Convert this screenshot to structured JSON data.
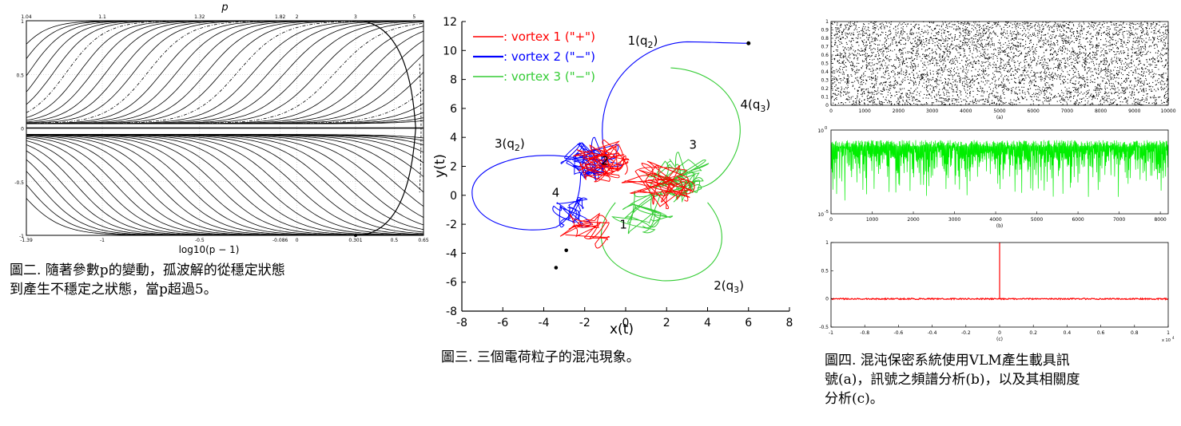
{
  "figures": [
    {
      "caption_lines": [
        "圖二. 隨著參數p的變動，孤波解的從穩定狀態",
        "到產生不穩定之狀態，當p超過5。"
      ]
    },
    {
      "caption_lines": [
        "圖三.  三個電荷粒子的混沌現象。"
      ]
    },
    {
      "caption_lines": [
        "圖四. 混沌保密系統使用VLM產生載具訊",
        "號(a)，訊號之頻譜分析(b)，以及其相關度",
        "分析(c)。"
      ]
    }
  ],
  "chart_data": [
    {
      "type": "line",
      "title": "",
      "top_axis_label": "p",
      "xlabel": "log10(p − 1)",
      "top_ticks": [
        "1.04",
        "1.1",
        "1.32",
        "1.82",
        "2",
        "3",
        "5"
      ],
      "top_tick_log": [
        -1.39,
        -1.0,
        -0.5,
        -0.086,
        0.0,
        0.301,
        0.602
      ],
      "bottom_ticks": [
        "-1.39",
        "-1",
        "-0.5",
        "-0.086",
        "0",
        "0.301",
        "0.5",
        "0.65"
      ],
      "bottom_tick_values": [
        -1.39,
        -1.0,
        -0.5,
        -0.086,
        0.0,
        0.301,
        0.5,
        0.65
      ],
      "y_ticks": [
        "1",
        "0.5",
        "0",
        "-0.5",
        "-1"
      ],
      "y_tick_values": [
        1,
        0.5,
        0,
        -0.5,
        -1
      ],
      "xlim": [
        -1.39,
        0.65
      ],
      "ylim": [
        -1,
        1
      ],
      "grid": true,
      "colors": {
        "curves": "#000000",
        "grid": "#bbbbbb"
      }
    },
    {
      "type": "line",
      "title": "",
      "xlabel": "x(t)",
      "ylabel": "y(t)",
      "xlim": [
        -8,
        8
      ],
      "ylim": [
        -8,
        12
      ],
      "x_ticks": [
        "-8",
        "-6",
        "-4",
        "-2",
        "0",
        "2",
        "4",
        "6",
        "8"
      ],
      "x_tick_values": [
        -8,
        -6,
        -4,
        -2,
        0,
        2,
        4,
        6,
        8
      ],
      "y_ticks": [
        "12",
        "10",
        "8",
        "6",
        "4",
        "2",
        "0",
        "-2",
        "-4",
        "-6",
        "-8"
      ],
      "y_tick_values": [
        12,
        10,
        8,
        6,
        4,
        2,
        0,
        -2,
        -4,
        -6,
        -8
      ],
      "legend_position": "top-left",
      "series": [
        {
          "name": ": vortex 1 (\"+\")",
          "color": "#ff0000"
        },
        {
          "name": ": vortex 2 (\"−\")",
          "color": "#0000ff"
        },
        {
          "name": ": vortex 3 (\"−\")",
          "color": "#33cc33"
        }
      ],
      "annotations": [
        {
          "text": "1(q",
          "sub": "2",
          "tail": ")",
          "x": 0.1,
          "y": 10.4
        },
        {
          "text": "4(q",
          "sub": "3",
          "tail": ")",
          "x": 5.6,
          "y": 6.0
        },
        {
          "text": "3(q",
          "sub": "2",
          "tail": ")",
          "x": -6.4,
          "y": 3.3
        },
        {
          "text": "2(q",
          "sub": "3",
          "tail": ")",
          "x": 4.3,
          "y": -6.5
        },
        {
          "text": "3",
          "x": 3.1,
          "y": 3.2
        },
        {
          "text": "2",
          "x": -1.2,
          "y": 2.1
        },
        {
          "text": "4",
          "x": -3.6,
          "y": -0.1
        },
        {
          "text": "1",
          "x": -0.3,
          "y": -2.3
        }
      ]
    },
    {
      "panels": [
        {
          "type": "scatter",
          "label": "(a)",
          "x_ticks": [
            "0",
            "1000",
            "2000",
            "3000",
            "4000",
            "5000",
            "6000",
            "7000",
            "8000",
            "9000",
            "10000"
          ],
          "x_tick_values": [
            0,
            1000,
            2000,
            3000,
            4000,
            5000,
            6000,
            7000,
            8000,
            9000,
            10000
          ],
          "y_ticks": [
            "1",
            "0.9",
            "0.8",
            "0.7",
            "0.6",
            "0.5",
            "0.4",
            "0.3",
            "0.2",
            "0.1",
            "0"
          ],
          "y_tick_values": [
            1,
            0.9,
            0.8,
            0.7,
            0.6,
            0.5,
            0.4,
            0.3,
            0.2,
            0.1,
            0
          ],
          "xlim": [
            0,
            10000
          ],
          "ylim": [
            0,
            1
          ],
          "color": "#000000"
        },
        {
          "type": "line",
          "label": "(b)",
          "x_ticks": [
            "0",
            "1000",
            "2000",
            "3000",
            "4000",
            "5000",
            "6000",
            "7000",
            "8000"
          ],
          "x_tick_values": [
            0,
            1000,
            2000,
            3000,
            4000,
            5000,
            6000,
            7000,
            8000
          ],
          "y_ticks": [
            "10",
            "10"
          ],
          "y_tick_exp": [
            "0",
            "-5"
          ],
          "y_tick_values": [
            0,
            -5
          ],
          "xlim": [
            0,
            8192
          ],
          "ylim": [
            -5,
            0
          ],
          "y_scale": "log",
          "color": "#00ee00"
        },
        {
          "type": "line",
          "label": "(c)",
          "x_ticks": [
            "-1",
            "-0.8",
            "-0.6",
            "-0.4",
            "-0.2",
            "0",
            "0.2",
            "0.4",
            "0.6",
            "0.8",
            "1"
          ],
          "x_tick_values": [
            -1,
            -0.8,
            -0.6,
            -0.4,
            -0.2,
            0,
            0.2,
            0.4,
            0.6,
            0.8,
            1
          ],
          "x_multiplier": "x 10",
          "x_multiplier_exp": "4",
          "y_ticks": [
            "1",
            "0.5",
            "0",
            "-0.5"
          ],
          "y_tick_values": [
            1,
            0.5,
            0,
            -0.5
          ],
          "xlim": [
            -1,
            1
          ],
          "ylim": [
            -0.5,
            1
          ],
          "color": "#ff0000"
        }
      ]
    }
  ]
}
